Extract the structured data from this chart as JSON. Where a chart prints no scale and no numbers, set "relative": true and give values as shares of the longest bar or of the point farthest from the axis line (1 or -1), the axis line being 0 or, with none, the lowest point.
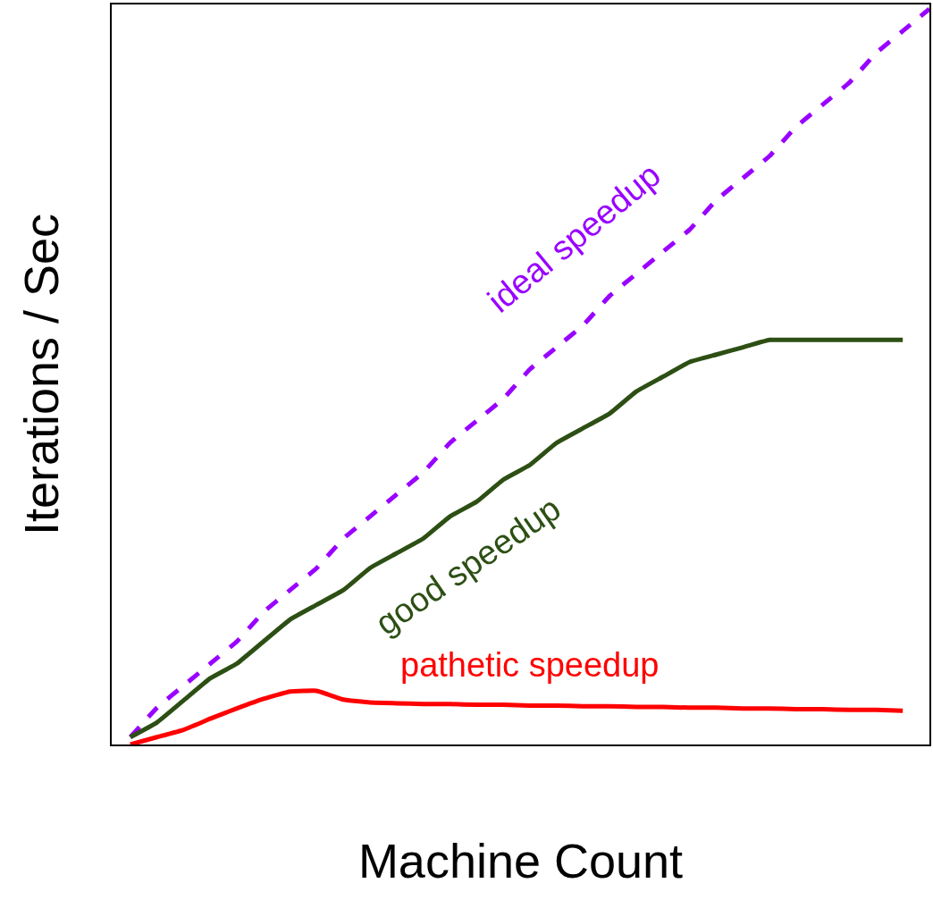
{
  "chart_data": {
    "type": "line",
    "relative": true,
    "xlabel": "Machine Count",
    "ylabel": "Iterations / Sec",
    "legend": false,
    "marker": "none",
    "categories": [
      null,
      null,
      null,
      null,
      null,
      null,
      null,
      null,
      null,
      null,
      null,
      null,
      null,
      null,
      null,
      null,
      null,
      null,
      null,
      null,
      null,
      null,
      null,
      null,
      null,
      null,
      null,
      null,
      null,
      null,
      null
    ],
    "series": [
      {
        "name": "ideal speedup",
        "color": "#9900ff",
        "line_style": "dashed",
        "values": [
          0.01,
          0.05,
          0.08,
          0.11,
          0.14,
          0.18,
          0.21,
          0.24,
          0.28,
          0.31,
          0.34,
          0.37,
          0.41,
          0.44,
          0.47,
          0.51,
          0.54,
          0.57,
          0.61,
          0.64,
          0.67,
          0.7,
          0.74,
          0.77,
          0.8,
          0.84,
          0.87,
          0.9,
          0.94,
          0.97,
          1.0
        ]
      },
      {
        "name": "good speedup",
        "color": "#2d4f14",
        "line_style": "solid",
        "values": [
          0.01,
          0.03,
          0.06,
          0.09,
          0.11,
          0.14,
          0.17,
          0.19,
          0.21,
          0.24,
          0.26,
          0.28,
          0.31,
          0.33,
          0.36,
          0.38,
          0.41,
          0.43,
          0.45,
          0.48,
          0.5,
          0.52,
          0.53,
          0.54,
          0.55,
          0.55,
          0.55,
          0.55,
          0.55,
          0.55,
          null
        ]
      },
      {
        "name": "pathetic speedup",
        "color": "#ff0000",
        "line_style": "solid",
        "values": [
          0.0,
          0.01,
          0.02,
          0.035,
          0.049,
          0.062,
          0.072,
          0.073,
          0.061,
          0.057,
          0.056,
          0.055,
          0.055,
          0.054,
          0.054,
          0.053,
          0.053,
          0.052,
          0.052,
          0.051,
          0.051,
          0.05,
          0.05,
          0.049,
          0.049,
          0.048,
          0.048,
          0.047,
          0.047,
          0.046,
          null
        ]
      }
    ]
  }
}
